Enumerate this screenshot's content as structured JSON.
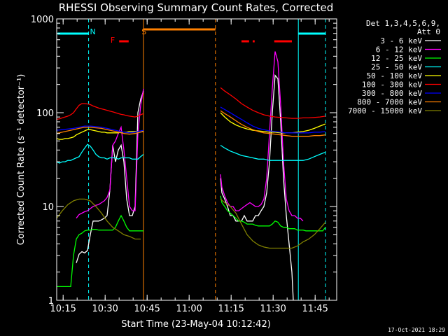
{
  "chart_data": {
    "type": "line",
    "title": "RHESSI Observing Summary Count Rates, Corrected",
    "xlabel": "Start Time (23-May-04 10:12:42)",
    "ylabel": "Corrected Count Rate (s⁻¹ detector⁻¹)",
    "x_unit": "minutes after 10:12:42",
    "xlim": [
      0,
      100
    ],
    "ylim": [
      1,
      1000
    ],
    "yscale": "log",
    "x_ticks": [
      {
        "label": "10:15",
        "x": 2.3
      },
      {
        "label": "10:30",
        "x": 17.3
      },
      {
        "label": "10:45",
        "x": 32.3
      },
      {
        "label": "11:00",
        "x": 47.3
      },
      {
        "label": "11:15",
        "x": 62.3
      },
      {
        "label": "11:30",
        "x": 77.3
      },
      {
        "label": "11:45",
        "x": 92.3
      }
    ],
    "y_ticks": [
      {
        "label": "1",
        "y": 1
      },
      {
        "label": "10",
        "y": 10
      },
      {
        "label": "100",
        "y": 100
      },
      {
        "label": "1000",
        "y": 1000
      }
    ],
    "legend_header": [
      "Det 1,3,4,5,6,9,",
      "Att 0"
    ],
    "legend_position": "right",
    "footer_date": "17-Oct-2021 18:29",
    "markers": [
      {
        "label": "N",
        "x": 11.4,
        "color": "#00ffff"
      },
      {
        "label": "F",
        "x": 20.0,
        "color": "#ff0000"
      },
      {
        "label": "S",
        "x": 29.7,
        "color": "#ff8000"
      }
    ],
    "vertical_lines": [
      {
        "x": 11.4,
        "color": "#00ffff",
        "style": "dashed"
      },
      {
        "x": 31.0,
        "color": "#ff8000",
        "style": "solid"
      },
      {
        "x": 56.7,
        "color": "#ff8000",
        "style": "dashed"
      },
      {
        "x": 86.3,
        "color": "#00ffff",
        "style": "solid"
      },
      {
        "x": 96.0,
        "color": "#00ffff",
        "style": "dashed"
      }
    ],
    "top_bars": [
      {
        "x0": 0.3,
        "x1": 11.4,
        "color": "#00ffff"
      },
      {
        "x0": 22.3,
        "x1": 25.7,
        "color": "#ff0000"
      },
      {
        "x0": 31.0,
        "x1": 56.7,
        "color": "#ff8000"
      },
      {
        "x0": 66.0,
        "x1": 68.7,
        "color": "#ff0000"
      },
      {
        "x0": 70.0,
        "x1": 70.7,
        "color": "#ff0000"
      },
      {
        "x0": 77.7,
        "x1": 84.0,
        "color": "#ff0000"
      },
      {
        "x0": 86.3,
        "x1": 96.0,
        "color": "#00ffff"
      }
    ],
    "series": [
      {
        "name": "3 - 6 keV",
        "color": "#ffffff",
        "x": [
          7,
          8,
          9,
          10,
          11,
          12,
          13,
          14,
          15,
          16,
          17,
          18,
          19,
          20,
          21,
          22,
          23,
          24,
          25,
          26,
          27,
          28,
          29,
          30,
          31,
          58.5,
          59,
          60,
          61,
          62,
          63,
          64,
          65,
          66,
          67,
          68,
          69,
          70,
          71,
          72,
          73,
          74,
          75,
          76,
          77,
          78,
          79,
          80,
          81,
          82,
          83,
          84,
          84.5
        ],
        "y": [
          2.5,
          3.1,
          3.3,
          3.2,
          3.4,
          5,
          7,
          7,
          7,
          7.2,
          7.5,
          8,
          15,
          45,
          30,
          40,
          45,
          30,
          12,
          8,
          8,
          10,
          100,
          140,
          170,
          20,
          14,
          12,
          10,
          8,
          8,
          7,
          7,
          7,
          8,
          7,
          7,
          7,
          8,
          8,
          9,
          10,
          14,
          30,
          100,
          250,
          230,
          80,
          20,
          8,
          4,
          2,
          1
        ]
      },
      {
        "name": "6 - 12 keV",
        "color": "#ff00ff",
        "x": [
          7,
          8,
          9,
          10,
          11,
          12,
          13,
          14,
          15,
          16,
          17,
          18,
          19,
          20,
          21,
          22,
          23,
          24,
          25,
          26,
          27,
          28,
          29,
          30,
          31,
          58.5,
          59,
          60,
          61,
          62,
          63,
          64,
          65,
          66,
          67,
          68,
          69,
          70,
          71,
          72,
          73,
          74,
          75,
          76,
          77,
          78,
          79,
          80,
          81,
          82,
          83,
          84,
          85,
          86,
          87,
          88
        ],
        "y": [
          7.5,
          8.2,
          8.5,
          8.8,
          9,
          9.5,
          10,
          10.3,
          10.5,
          11,
          11.5,
          12.5,
          15,
          45,
          50,
          60,
          70,
          40,
          20,
          10,
          9,
          9,
          60,
          120,
          180,
          22,
          16,
          13,
          11,
          10,
          10,
          9,
          9,
          9.5,
          10,
          10.5,
          11,
          10.5,
          10,
          10,
          10.5,
          12,
          20,
          60,
          180,
          450,
          350,
          120,
          30,
          12,
          9,
          8,
          8,
          7.5,
          7.5,
          7
        ]
      },
      {
        "name": "12 - 25 keV",
        "color": "#00ff00",
        "x": [
          0,
          3,
          5,
          6,
          7,
          8,
          9,
          10,
          11,
          12,
          13,
          14,
          15,
          16,
          17,
          18,
          19,
          20,
          21,
          22,
          23,
          24,
          25,
          26,
          27,
          28,
          29,
          30,
          31,
          58.5,
          59,
          60,
          61,
          62,
          63,
          64,
          65,
          66,
          67,
          68,
          69,
          70,
          71,
          72,
          73,
          74,
          75,
          76,
          77,
          78,
          79,
          80,
          81,
          82,
          83,
          84,
          85,
          86,
          87,
          88,
          89,
          90,
          91,
          92,
          93,
          94,
          95,
          96
        ],
        "y": [
          1.4,
          1.4,
          1.4,
          3.0,
          4.5,
          5.0,
          5.2,
          5.5,
          5.6,
          5.6,
          5.7,
          5.7,
          5.6,
          5.6,
          5.6,
          5.6,
          5.6,
          5.6,
          6,
          7,
          8,
          7,
          6,
          5.5,
          5.5,
          5.5,
          5.5,
          5.5,
          5.5,
          13,
          11,
          10,
          9,
          8.5,
          8,
          7.5,
          7,
          7,
          6.8,
          6.5,
          6.5,
          6.5,
          6.3,
          6.2,
          6.2,
          6.2,
          6.2,
          6.2,
          6.5,
          7,
          6.8,
          6.2,
          6,
          6,
          5.8,
          5.8,
          5.8,
          5.6,
          5.6,
          5.6,
          5.5,
          5.5,
          5.5,
          5.5,
          5.5,
          5.5,
          5.5,
          6
        ]
      },
      {
        "name": "25 - 50 keV",
        "color": "#00ffff",
        "x": [
          0,
          1,
          2,
          3,
          4,
          5,
          6,
          7,
          8,
          9,
          10,
          11,
          12,
          13,
          14,
          15,
          16,
          17,
          18,
          19,
          20,
          21,
          22,
          23,
          24,
          25,
          26,
          27,
          28,
          29,
          30,
          31,
          58.5,
          60,
          62,
          64,
          66,
          68,
          70,
          72,
          74,
          76,
          78,
          80,
          82,
          84,
          86,
          88,
          90,
          92,
          94,
          96
        ],
        "y": [
          30,
          29,
          30,
          30,
          31,
          31,
          32,
          33,
          34,
          38,
          42,
          46,
          44,
          40,
          36,
          34,
          33,
          33,
          32,
          33,
          33,
          33,
          32,
          33,
          33,
          33,
          33,
          32,
          32,
          32,
          34,
          36,
          45,
          42,
          39,
          37,
          35,
          34,
          33,
          32,
          32,
          31,
          31,
          31,
          31,
          31,
          31,
          31,
          32,
          34,
          36,
          38
        ]
      },
      {
        "name": "50 - 100 keV",
        "color": "#ffff00",
        "x": [
          0,
          1,
          2,
          3,
          4,
          5,
          6,
          7,
          8,
          9,
          10,
          11,
          12,
          13,
          14,
          15,
          16,
          17,
          18,
          19,
          20,
          21,
          22,
          23,
          24,
          25,
          26,
          27,
          28,
          29,
          30,
          31,
          58.5,
          60,
          62,
          64,
          66,
          68,
          70,
          72,
          74,
          76,
          78,
          80,
          82,
          84,
          86,
          88,
          90,
          92,
          94,
          96
        ],
        "y": [
          53,
          52,
          52,
          53,
          53,
          54,
          55,
          58,
          60,
          62,
          64,
          66,
          66,
          65,
          64,
          63,
          62,
          62,
          61,
          61,
          61,
          61,
          61,
          62,
          62,
          62,
          63,
          63,
          63,
          63,
          64,
          64,
          100,
          90,
          80,
          74,
          70,
          67,
          65,
          64,
          63,
          62,
          62,
          61,
          61,
          61,
          62,
          63,
          65,
          68,
          72,
          76
        ]
      },
      {
        "name": "100 - 300 keV",
        "color": "#ff0000",
        "x": [
          0,
          1,
          2,
          3,
          4,
          5,
          6,
          7,
          8,
          9,
          10,
          11,
          12,
          13,
          14,
          15,
          16,
          17,
          18,
          19,
          20,
          21,
          22,
          23,
          24,
          25,
          26,
          27,
          28,
          29,
          30,
          31,
          58.5,
          60,
          62,
          64,
          66,
          68,
          70,
          72,
          74,
          76,
          78,
          80,
          82,
          84,
          86,
          88,
          90,
          92,
          94,
          96
        ],
        "y": [
          85,
          86,
          88,
          90,
          92,
          95,
          100,
          110,
          120,
          125,
          125,
          124,
          122,
          118,
          115,
          112,
          110,
          108,
          106,
          104,
          102,
          100,
          98,
          96,
          95,
          93,
          92,
          91,
          90,
          92,
          95,
          98,
          185,
          170,
          155,
          140,
          125,
          115,
          106,
          100,
          95,
          92,
          90,
          89,
          88,
          87,
          87,
          88,
          88,
          89,
          90,
          92
        ]
      },
      {
        "name": "300 - 800 keV",
        "color": "#0000ff",
        "x": [
          0,
          2,
          4,
          6,
          8,
          10,
          12,
          14,
          16,
          18,
          20,
          22,
          24,
          26,
          28,
          30,
          31,
          58.5,
          60,
          62,
          64,
          66,
          68,
          70,
          72,
          74,
          76,
          78,
          80,
          82,
          84,
          86,
          88,
          90,
          92,
          94,
          96
        ],
        "y": [
          65,
          66,
          67,
          68,
          70,
          72,
          72,
          71,
          70,
          68,
          66,
          64,
          62,
          61,
          62,
          64,
          65,
          115,
          108,
          100,
          92,
          85,
          78,
          72,
          68,
          66,
          64,
          63,
          62,
          61,
          61,
          61,
          61,
          61,
          62,
          62,
          63
        ]
      },
      {
        "name": "800 - 7000 keV",
        "color": "#ff8000",
        "x": [
          0,
          2,
          4,
          6,
          8,
          10,
          12,
          14,
          16,
          18,
          20,
          22,
          24,
          26,
          28,
          30,
          31,
          58.5,
          60,
          62,
          64,
          66,
          68,
          70,
          72,
          74,
          76,
          78,
          80,
          82,
          84,
          86,
          88,
          90,
          92,
          94,
          96
        ],
        "y": [
          60,
          62,
          64,
          66,
          68,
          70,
          70,
          69,
          68,
          66,
          64,
          62,
          60,
          59,
          60,
          62,
          63,
          105,
          98,
          90,
          82,
          75,
          70,
          66,
          63,
          61,
          60,
          59,
          58,
          57,
          56,
          56,
          56,
          56,
          57,
          57,
          58
        ]
      },
      {
        "name": "7000 - 15000 keV",
        "color": "#808000",
        "x": [
          0,
          2,
          4,
          6,
          8,
          10,
          12,
          14,
          16,
          18,
          20,
          22,
          24,
          26,
          28,
          30,
          58.5,
          60,
          62,
          64,
          66,
          68,
          70,
          72,
          74,
          76,
          78,
          80,
          82,
          84,
          86,
          88,
          90,
          92,
          94,
          96
        ],
        "y": [
          7.5,
          9,
          10.5,
          11.5,
          12,
          12,
          11.5,
          10,
          8.5,
          7,
          6,
          5.5,
          5,
          4.8,
          4.5,
          4.5,
          12,
          11,
          10,
          8.5,
          6.5,
          5,
          4.3,
          3.9,
          3.7,
          3.6,
          3.6,
          3.6,
          3.6,
          3.6,
          3.8,
          4.2,
          4.5,
          5,
          5.8,
          6.8
        ]
      }
    ]
  }
}
